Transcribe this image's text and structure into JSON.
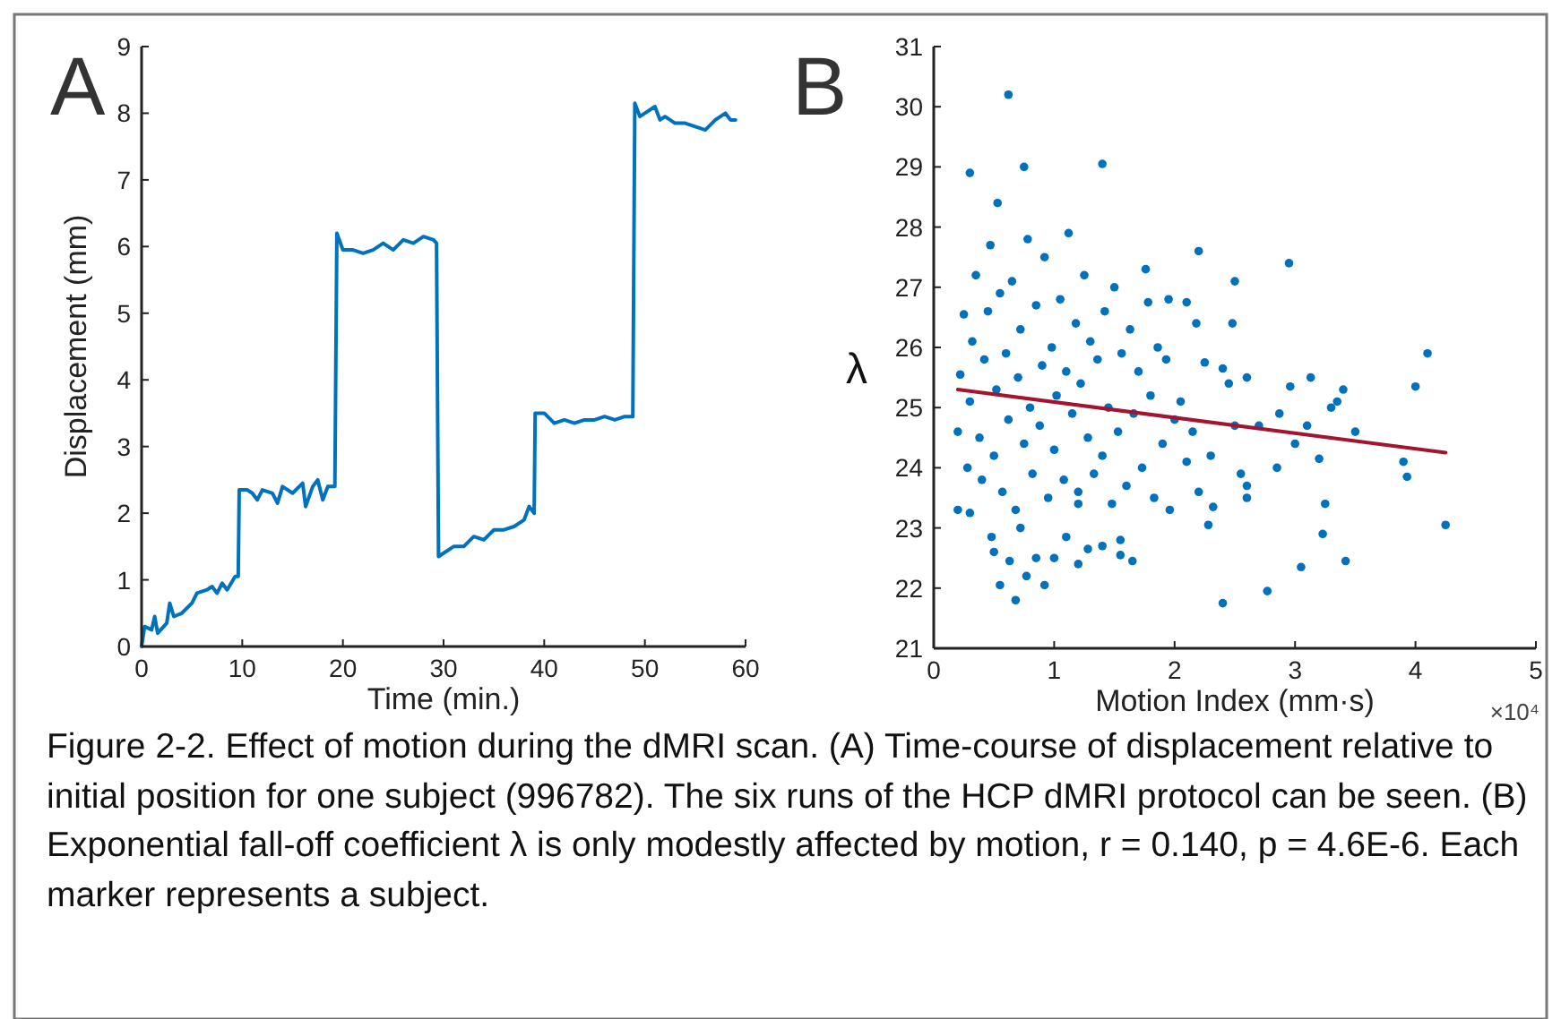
{
  "chart_data": [
    {
      "type": "line",
      "title": "A",
      "xlabel": "Time (min.)",
      "ylabel": "Displacement (mm)",
      "xlim": [
        0,
        60
      ],
      "xticks": [
        0,
        10,
        20,
        30,
        40,
        50,
        60
      ],
      "ylim": [
        0,
        9
      ],
      "yticks": [
        0,
        1,
        2,
        3,
        4,
        5,
        6,
        7,
        8,
        9
      ],
      "grid": false,
      "annotations": [
        "Figure 2-2. Effect of motion during the dMRI scan. (A) Time-course of displacement relative to initial position for one subject (996782). The six runs of the HCP dMRI protocol can be seen. (B) Exponential fall-off coefficient λ is only modestly affected by motion, r = 0.140, p = 4.6E-6. Each marker represents a subject."
      ],
      "x": [
        0,
        0.3,
        1,
        1.3,
        1.6,
        2.5,
        2.8,
        3.2,
        4,
        5,
        5.5,
        6.5,
        7,
        7.5,
        8,
        8.5,
        9.3,
        9.6,
        9.7,
        10.5,
        11,
        11.5,
        12,
        13,
        13.5,
        14,
        15,
        16,
        16.3,
        17,
        17.5,
        18,
        18.5,
        19.2,
        19.4,
        20,
        21,
        22,
        23,
        24,
        25,
        26,
        27,
        28,
        29,
        29.3,
        29.5,
        30,
        31,
        32,
        33,
        34,
        35,
        36,
        37,
        38,
        38.5,
        39,
        39.1,
        40,
        41,
        42,
        43,
        44,
        45,
        46,
        47,
        48,
        48.8,
        49,
        49.5,
        50,
        51,
        51.5,
        52,
        53,
        54,
        55,
        56,
        57,
        58,
        58.5,
        59
      ],
      "series": [
        {
          "color": "#0072bd",
          "values": [
            0,
            0.3,
            0.25,
            0.45,
            0.2,
            0.35,
            0.65,
            0.45,
            0.5,
            0.65,
            0.8,
            0.85,
            0.9,
            0.8,
            0.95,
            0.85,
            1.05,
            1.05,
            2.35,
            2.35,
            2.3,
            2.2,
            2.35,
            2.3,
            2.15,
            2.4,
            2.3,
            2.45,
            2.1,
            2.4,
            2.5,
            2.2,
            2.4,
            2.4,
            6.2,
            5.95,
            5.95,
            5.9,
            5.95,
            6.05,
            5.95,
            6.1,
            6.05,
            6.15,
            6.1,
            6.05,
            1.35,
            1.4,
            1.5,
            1.5,
            1.65,
            1.6,
            1.75,
            1.75,
            1.8,
            1.9,
            2.1,
            2,
            3.5,
            3.5,
            3.35,
            3.4,
            3.35,
            3.4,
            3.4,
            3.45,
            3.4,
            3.45,
            3.45,
            8.15,
            7.95,
            8,
            8.1,
            7.9,
            7.95,
            7.85,
            7.85,
            7.8,
            7.75,
            7.9,
            8,
            7.9,
            7.9
          ]
        }
      ]
    },
    {
      "type": "scatter",
      "title": "B",
      "xlabel": "Motion Index (mm·s)",
      "ylabel": "λ",
      "xlim": [
        0,
        5
      ],
      "xticks": [
        0,
        1,
        2,
        3,
        4,
        5
      ],
      "ylim": [
        21,
        31
      ],
      "yticks": [
        21,
        22,
        23,
        24,
        25,
        26,
        27,
        28,
        29,
        30,
        31
      ],
      "grid": false,
      "annotations": [
        "×10⁴"
      ],
      "series": [
        {
          "marker": "circle",
          "color": "#0072bd",
          "x": [
            0.62,
            0.3,
            0.75,
            1.4,
            0.53,
            2.2,
            2.95,
            2.5,
            2.48,
            4.1,
            4.0,
            3.9,
            3.93,
            4.25,
            3.5,
            3.4,
            3.35,
            3.3,
            3.2,
            3.25,
            3.23,
            3.42,
            3.05,
            2.77,
            2.4,
            2.6,
            2.6,
            2.28,
            2.32,
            2.85,
            2.87,
            3.0,
            3.1,
            3.13,
            2.96,
            2.6,
            2.45,
            2.4,
            2.25,
            2.18,
            2.1,
            1.95,
            1.78,
            1.65,
            1.55,
            1.55,
            1.2,
            0.68,
            0.55,
            0.92,
            0.77,
            0.63,
            0.5,
            0.85,
            1.0,
            1.28,
            1.4,
            1.2,
            1.1,
            0.2,
            0.3,
            0.48,
            0.72,
            0.2,
            0.22,
            0.25,
            0.28,
            0.3,
            0.32,
            0.35,
            0.38,
            0.4,
            0.42,
            0.45,
            0.47,
            0.5,
            0.52,
            0.55,
            0.57,
            0.6,
            0.62,
            0.65,
            0.68,
            0.7,
            0.72,
            0.75,
            0.78,
            0.8,
            0.82,
            0.85,
            0.88,
            0.9,
            0.92,
            0.95,
            0.98,
            1.0,
            1.02,
            1.05,
            1.08,
            1.1,
            1.12,
            1.15,
            1.18,
            1.2,
            1.22,
            1.25,
            1.28,
            1.3,
            1.33,
            1.36,
            1.4,
            1.42,
            1.45,
            1.48,
            1.5,
            1.53,
            1.56,
            1.6,
            1.63,
            1.66,
            1.7,
            1.73,
            1.76,
            1.8,
            1.83,
            1.86,
            1.9,
            1.93,
            1.96,
            2.0,
            2.05,
            2.1,
            2.15,
            2.2,
            2.3,
            2.5,
            2.55,
            2.7
          ],
          "values": [
            30.2,
            28.9,
            29.0,
            29.05,
            28.4,
            27.6,
            27.4,
            27.1,
            26.4,
            25.9,
            25.35,
            24.1,
            23.85,
            23.05,
            24.6,
            25.3,
            25.1,
            25.0,
            24.15,
            23.4,
            22.9,
            22.45,
            22.35,
            21.95,
            21.75,
            23.5,
            23.7,
            23.05,
            23.35,
            24.0,
            24.9,
            24.4,
            24.7,
            25.5,
            25.35,
            25.5,
            25.4,
            25.65,
            25.75,
            26.4,
            26.75,
            26.8,
            26.75,
            22.45,
            22.55,
            22.8,
            22.4,
            21.8,
            22.05,
            22.05,
            22.2,
            22.45,
            22.6,
            22.5,
            22.5,
            22.65,
            22.7,
            23.4,
            22.85,
            23.3,
            23.25,
            22.85,
            23.0,
            24.6,
            25.55,
            26.55,
            24.0,
            25.1,
            26.1,
            27.2,
            24.5,
            23.8,
            25.8,
            26.6,
            27.7,
            24.2,
            25.3,
            26.9,
            23.6,
            25.9,
            24.8,
            27.1,
            23.3,
            25.5,
            26.3,
            24.4,
            27.8,
            25.0,
            23.9,
            26.7,
            24.7,
            25.7,
            27.5,
            23.5,
            26.0,
            24.3,
            25.2,
            26.8,
            23.8,
            25.6,
            27.9,
            24.9,
            26.4,
            23.6,
            25.4,
            27.2,
            24.5,
            26.1,
            23.9,
            25.8,
            24.2,
            26.6,
            25.0,
            23.4,
            27.0,
            24.6,
            25.9,
            23.7,
            26.3,
            24.9,
            25.6,
            24.0,
            27.3,
            25.2,
            23.5,
            26.0,
            24.4,
            25.8,
            23.3,
            24.8,
            25.1,
            24.1,
            24.6,
            23.6,
            24.2,
            24.7,
            23.9,
            24.7
          ]
        },
        {
          "type": "line",
          "color": "#a2142f",
          "x": [
            0.2,
            4.25
          ],
          "values": [
            25.3,
            24.25
          ]
        }
      ]
    }
  ]
}
